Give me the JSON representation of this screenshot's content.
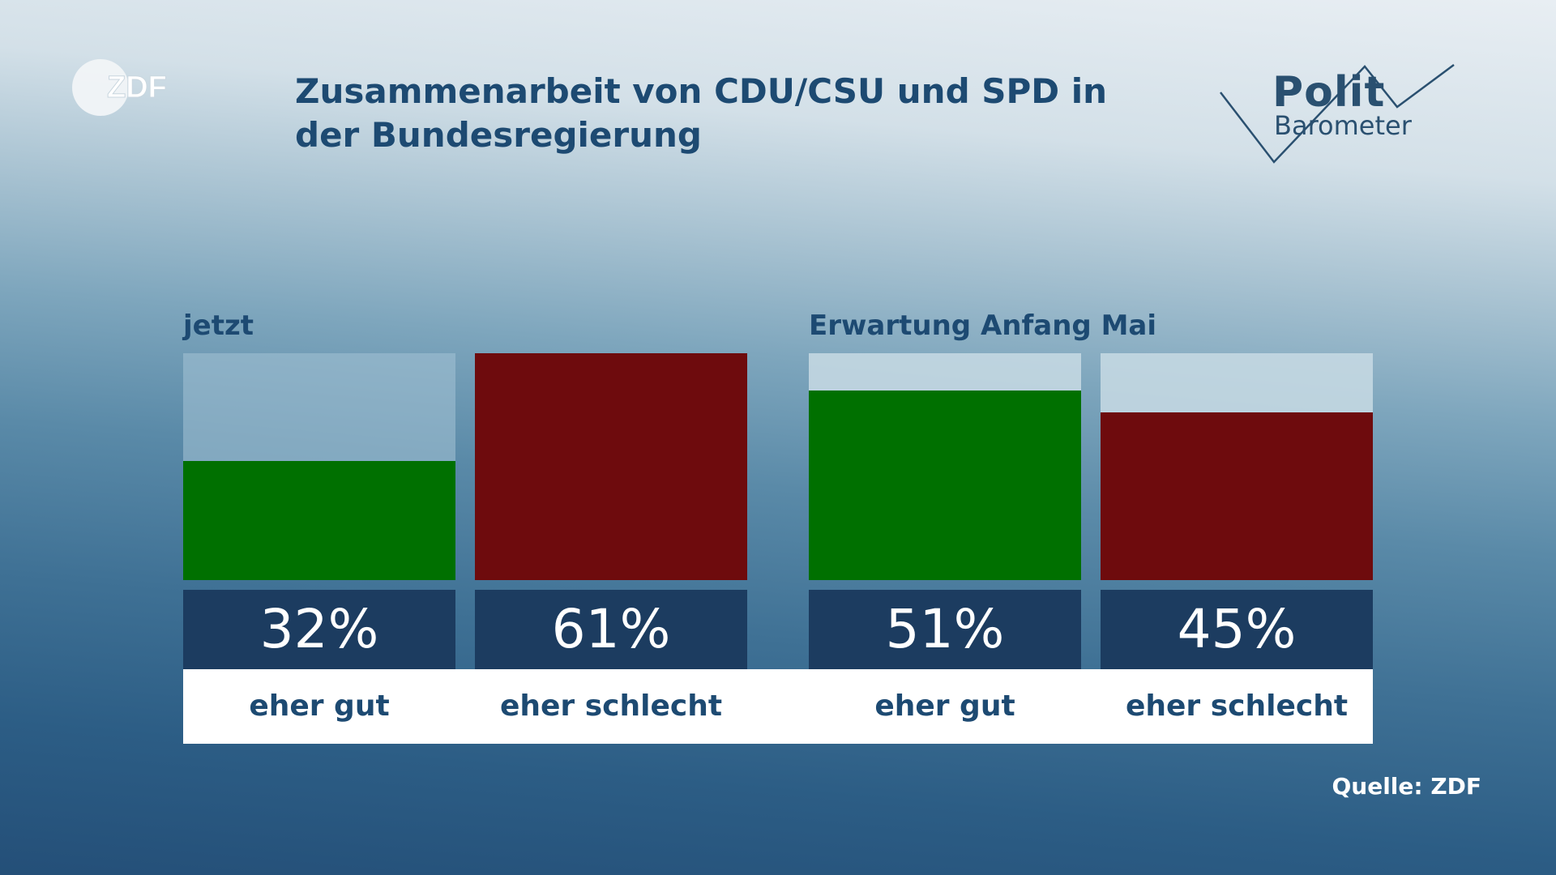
{
  "header": {
    "title": "Zusammenarbeit von CDU/CSU und SPD in der Bundesregierung",
    "logo_text": "ZDF",
    "brand_word1": "Polit",
    "brand_word2": "Barometer"
  },
  "chart_data": {
    "type": "bar",
    "title": "Zusammenarbeit von CDU/CSU und SPD in der Bundesregierung",
    "groups": [
      {
        "name": "jetzt",
        "categories": [
          "eher gut",
          "eher schlecht"
        ],
        "values": [
          32,
          61
        ]
      },
      {
        "name": "Erwartung Anfang Mai",
        "categories": [
          "eher gut",
          "eher schlecht"
        ],
        "values": [
          51,
          45
        ]
      }
    ],
    "value_labels": [
      "32%",
      "61%",
      "51%",
      "45%"
    ],
    "ylim": [
      0,
      61
    ],
    "colors": {
      "eher gut": "#007000",
      "eher schlecht": "#6e0b0d"
    }
  },
  "footer": {
    "source": "Quelle: ZDF"
  },
  "colors": {
    "title": "#1d4a72",
    "value_box": "#1c3c60",
    "track": "#ffffff"
  }
}
